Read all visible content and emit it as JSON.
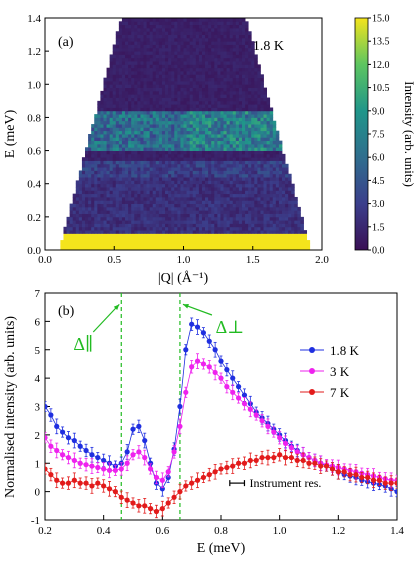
{
  "colors": {
    "blue": "#1f2fe0",
    "magenta": "#ee22ee",
    "red": "#e21b1b",
    "green": "#22bb22",
    "yellow": "#f4e41c",
    "dark": "#3a1055"
  },
  "chart_data": [
    {
      "type": "heatmap",
      "panel_label": "(a)",
      "annotation": "1.8 K",
      "xlabel": "|Q| (Å⁻¹)",
      "ylabel": "E (meV)",
      "xlim": [
        0.0,
        2.0
      ],
      "ylim": [
        0.0,
        1.4
      ],
      "xticks": [
        "0.0",
        "0.5",
        "1.0",
        "1.5",
        "2.0"
      ],
      "yticks": [
        "0.0",
        "0.2",
        "0.4",
        "0.6",
        "0.8",
        "1.0",
        "1.2",
        "1.4"
      ],
      "colorbar": {
        "label": "Intensity (arb. units)",
        "range": [
          0.0,
          15.0
        ],
        "ticks": [
          "0.0",
          "1.5",
          "3.0",
          "4.5",
          "6.0",
          "7.5",
          "9.0",
          "10.5",
          "12.0",
          "13.5",
          "15.0"
        ]
      },
      "coverage": {
        "q_min_at_E0": 0.1,
        "q_max_at_E0": 1.92,
        "q_min_at_Emax": 0.55,
        "q_max_at_Emax": 1.45
      },
      "features": [
        {
          "E_from": 0.0,
          "E_to": 0.1,
          "intensity": 15.0
        },
        {
          "E_from": 0.6,
          "E_to": 0.85,
          "intensity": 6.0
        },
        {
          "E_from": 0.45,
          "E_to": 0.55,
          "intensity": 3.0
        },
        {
          "E_from": 0.1,
          "E_to": 0.45,
          "intensity": 2.0
        },
        {
          "E_from": 0.85,
          "E_to": 1.4,
          "intensity": 1.0
        }
      ]
    },
    {
      "type": "scatter",
      "panel_label": "(b)",
      "xlabel": "E (meV)",
      "ylabel": "Normalised intensity (arb. units)",
      "xlim": [
        0.2,
        1.4
      ],
      "ylim": [
        -1,
        7
      ],
      "xticks": [
        "0.2",
        "0.4",
        "0.6",
        "0.8",
        "1.0",
        "1.2",
        "1.4"
      ],
      "yticks": [
        "-1",
        "0",
        "1",
        "2",
        "3",
        "4",
        "5",
        "6",
        "7"
      ],
      "legend_position": "right",
      "instrument_label": "Instrument res.",
      "instrument_res": [
        0.83,
        0.88
      ],
      "instrument_y": 0.3,
      "vlines": [
        {
          "x": 0.46,
          "label": "Δ∥"
        },
        {
          "x": 0.66,
          "label": "Δ⊥"
        }
      ],
      "x": [
        0.2,
        0.22,
        0.24,
        0.26,
        0.28,
        0.3,
        0.32,
        0.34,
        0.36,
        0.38,
        0.4,
        0.42,
        0.44,
        0.46,
        0.48,
        0.5,
        0.52,
        0.54,
        0.56,
        0.58,
        0.6,
        0.62,
        0.64,
        0.66,
        0.68,
        0.7,
        0.72,
        0.74,
        0.76,
        0.78,
        0.8,
        0.82,
        0.84,
        0.86,
        0.88,
        0.9,
        0.92,
        0.94,
        0.96,
        0.98,
        1.0,
        1.02,
        1.04,
        1.06,
        1.08,
        1.1,
        1.12,
        1.14,
        1.16,
        1.18,
        1.2,
        1.22,
        1.24,
        1.26,
        1.28,
        1.3,
        1.32,
        1.34,
        1.36,
        1.38,
        1.4
      ],
      "series": [
        {
          "name": "1.8 K",
          "color": "#1f2fe0",
          "values": [
            3.0,
            2.7,
            2.3,
            2.1,
            1.9,
            1.8,
            1.6,
            1.45,
            1.3,
            1.2,
            1.1,
            1.0,
            0.9,
            1.0,
            1.4,
            2.2,
            2.3,
            1.8,
            1.0,
            0.3,
            0.1,
            0.5,
            1.5,
            3.0,
            5.0,
            5.9,
            5.8,
            5.6,
            5.3,
            5.0,
            4.6,
            4.3,
            4.0,
            3.7,
            3.4,
            3.1,
            2.8,
            2.6,
            2.4,
            2.2,
            2.0,
            1.8,
            1.6,
            1.45,
            1.3,
            1.2,
            1.1,
            1.0,
            0.9,
            0.8,
            0.7,
            0.6,
            0.55,
            0.5,
            0.4,
            0.35,
            0.3,
            0.25,
            0.2,
            0.1,
            0.0
          ]
        },
        {
          "name": "3 K",
          "color": "#ee22ee",
          "values": [
            1.9,
            1.6,
            1.45,
            1.3,
            1.2,
            1.1,
            1.0,
            0.95,
            0.9,
            0.85,
            0.8,
            0.75,
            0.75,
            0.8,
            1.0,
            1.3,
            1.4,
            1.2,
            0.8,
            0.5,
            0.4,
            0.7,
            1.4,
            2.3,
            3.5,
            4.4,
            4.6,
            4.5,
            4.4,
            4.2,
            4.0,
            3.7,
            3.5,
            3.3,
            3.1,
            2.9,
            2.7,
            2.5,
            2.3,
            2.1,
            1.9,
            1.7,
            1.55,
            1.4,
            1.3,
            1.2,
            1.1,
            1.0,
            0.95,
            0.9,
            0.85,
            0.8,
            0.75,
            0.7,
            0.65,
            0.6,
            0.55,
            0.5,
            0.45,
            0.4,
            0.4
          ]
        },
        {
          "name": "7 K",
          "color": "#e21b1b",
          "values": [
            0.8,
            0.6,
            0.4,
            0.3,
            0.3,
            0.4,
            0.3,
            0.3,
            0.2,
            0.3,
            0.2,
            0.1,
            0.0,
            -0.2,
            -0.3,
            -0.4,
            -0.5,
            -0.5,
            -0.6,
            -0.7,
            -0.6,
            -0.4,
            -0.2,
            0.0,
            0.2,
            0.3,
            0.4,
            0.5,
            0.6,
            0.7,
            0.8,
            0.85,
            0.9,
            1.0,
            1.0,
            1.1,
            1.1,
            1.2,
            1.2,
            1.2,
            1.3,
            1.2,
            1.2,
            1.1,
            1.1,
            1.0,
            1.0,
            0.9,
            0.9,
            0.8,
            0.7,
            0.7,
            0.6,
            0.6,
            0.5,
            0.5,
            0.4,
            0.4,
            0.3,
            0.3,
            0.3
          ]
        }
      ]
    }
  ]
}
